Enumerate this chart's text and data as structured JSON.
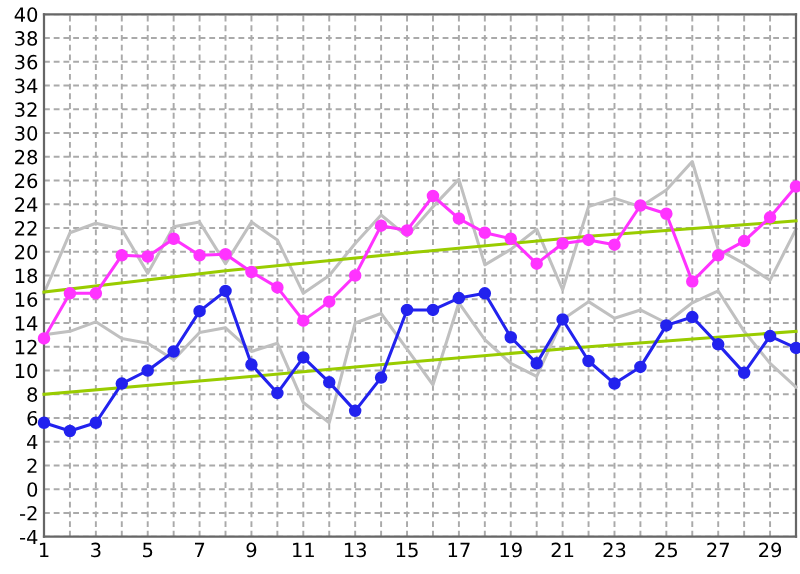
{
  "chart_data": {
    "type": "line",
    "x": [
      1,
      2,
      3,
      4,
      5,
      6,
      7,
      8,
      9,
      10,
      11,
      12,
      13,
      14,
      15,
      16,
      17,
      18,
      19,
      20,
      21,
      22,
      23,
      24,
      25,
      26,
      27,
      28,
      29,
      30
    ],
    "series": [
      {
        "color": "#c0c0c0",
        "marker": "none",
        "values": [
          16.5,
          21.6,
          22.4,
          21.9,
          18.2,
          22.1,
          22.5,
          19.0,
          22.5,
          21.0,
          16.5,
          18.0,
          20.7,
          23.1,
          21.3,
          23.8,
          26.1,
          18.9,
          20.2,
          21.9,
          16.8,
          23.8,
          24.5,
          23.8,
          25.2,
          27.6,
          20.2,
          19.0,
          17.6,
          21.9
        ]
      },
      {
        "color": "#c0c0c0",
        "marker": "none",
        "values": [
          13.0,
          13.3,
          14.1,
          12.7,
          12.3,
          10.9,
          13.2,
          13.6,
          11.6,
          12.3,
          7.3,
          5.6,
          14.0,
          14.8,
          11.8,
          8.8,
          15.7,
          12.6,
          10.6,
          9.5,
          14.3,
          15.8,
          14.4,
          15.1,
          14.0,
          15.7,
          16.7,
          13.3,
          10.6,
          8.6
        ]
      },
      {
        "color": "#99cc00",
        "marker": "none",
        "x": [
          1,
          8,
          15,
          22,
          30
        ],
        "values": [
          16.6,
          18.4,
          19.9,
          21.3,
          22.6
        ]
      },
      {
        "color": "#99cc00",
        "marker": "none",
        "x": [
          1,
          8,
          15,
          22,
          30
        ],
        "values": [
          8.0,
          9.3,
          10.7,
          12.0,
          13.3
        ]
      },
      {
        "color": "#ff33ff",
        "marker": "circle",
        "values": [
          12.7,
          16.5,
          16.5,
          19.7,
          19.6,
          21.1,
          19.7,
          19.8,
          18.3,
          17.0,
          14.2,
          15.8,
          18.0,
          22.2,
          21.8,
          24.7,
          22.8,
          21.6,
          21.1,
          19.0,
          20.7,
          21.0,
          20.6,
          23.9,
          23.2,
          17.5,
          19.7,
          20.9,
          22.9,
          25.5
        ]
      },
      {
        "color": "#2222ee",
        "marker": "circle",
        "values": [
          5.6,
          4.9,
          5.6,
          8.9,
          10.0,
          11.6,
          15.0,
          16.7,
          10.5,
          8.1,
          11.1,
          9.0,
          6.6,
          9.4,
          15.1,
          15.1,
          16.1,
          16.5,
          12.8,
          10.6,
          14.3,
          10.8,
          8.9,
          10.3,
          13.8,
          14.5,
          12.2,
          9.8,
          12.9,
          11.9
        ]
      }
    ],
    "xlim": [
      1,
      30
    ],
    "xticks": [
      1,
      {
        "value": 2,
        "label": null
      },
      3,
      {
        "value": 4,
        "label": null
      },
      5,
      {
        "value": 6,
        "label": null
      },
      7,
      {
        "value": 8,
        "label": null
      },
      9,
      {
        "value": 10,
        "label": null
      },
      11,
      {
        "value": 12,
        "label": null
      },
      13,
      {
        "value": 14,
        "label": null
      },
      15,
      {
        "value": 16,
        "label": null
      },
      17,
      {
        "value": 18,
        "label": null
      },
      19,
      {
        "value": 20,
        "label": null
      },
      21,
      {
        "value": 22,
        "label": null
      },
      23,
      {
        "value": 24,
        "label": null
      },
      25,
      {
        "value": 26,
        "label": null
      },
      27,
      {
        "value": 28,
        "label": null
      },
      29,
      {
        "value": 30,
        "label": null
      }
    ],
    "ylim": [
      -4,
      40
    ],
    "yticks": [
      -4,
      -2,
      0,
      2,
      4,
      6,
      8,
      10,
      12,
      14,
      16,
      18,
      20,
      22,
      24,
      26,
      28,
      30,
      32,
      34,
      36,
      38,
      40
    ],
    "grid": true,
    "line_style": "solid"
  }
}
